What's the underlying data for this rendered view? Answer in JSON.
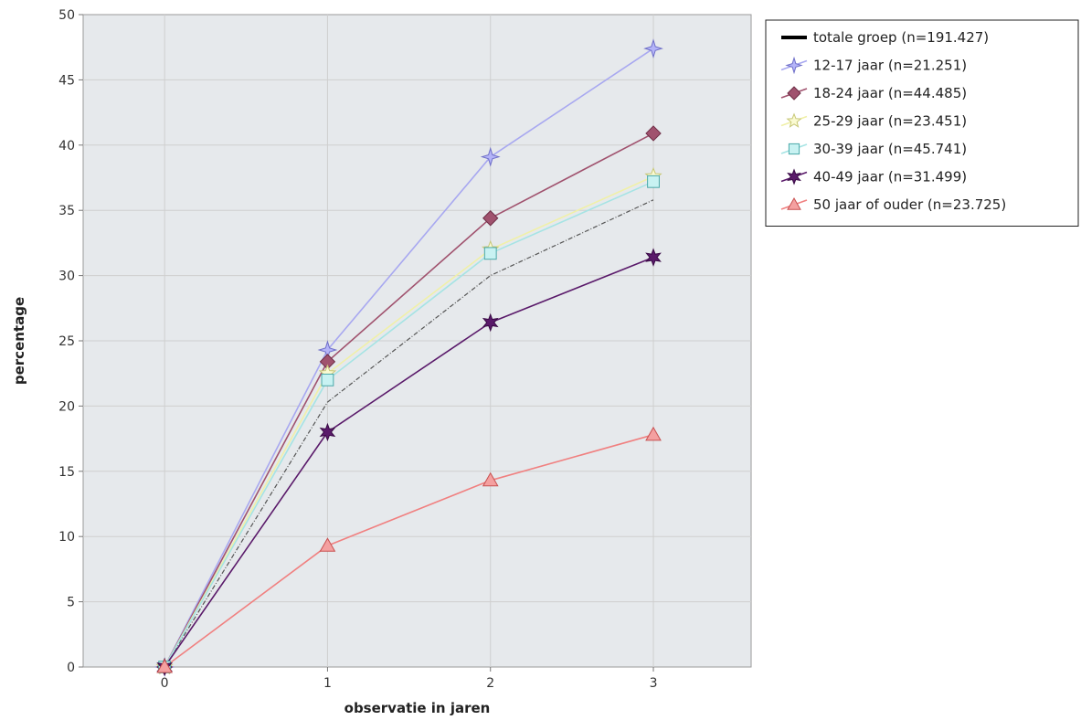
{
  "chart_data": {
    "type": "line",
    "xlabel": "observatie in jaren",
    "ylabel": "percentage",
    "x": [
      0,
      1,
      2,
      3
    ],
    "xlim": [
      -0.5,
      3.6
    ],
    "ylim": [
      0,
      50
    ],
    "x_ticks": [
      "0",
      "1",
      "2",
      "3"
    ],
    "y_ticks": [
      "0",
      "5",
      "10",
      "15",
      "20",
      "25",
      "30",
      "35",
      "40",
      "45",
      "50"
    ],
    "grid": true,
    "legend_position": "right",
    "plot_background": "#e6e9ec",
    "series": [
      {
        "name": "totale groep (n=191.427)",
        "values": [
          0,
          20.3,
          30.0,
          35.8
        ],
        "color": "#555555",
        "legend_color": "#000000",
        "marker": "none",
        "dashed": true
      },
      {
        "name": "12-17 jaar (n=21.251)",
        "values": [
          0,
          24.3,
          39.1,
          47.4
        ],
        "color": "#a8a8f0",
        "marker": "star4",
        "marker_fill": "#b4b4f8",
        "marker_stroke": "#6f6fc8"
      },
      {
        "name": "18-24 jaar (n=44.485)",
        "values": [
          0,
          23.4,
          34.4,
          40.9
        ],
        "color": "#a0526e",
        "marker": "diamond",
        "marker_fill": "#a0526e",
        "marker_stroke": "#6e2e46"
      },
      {
        "name": "25-29 jaar (n=23.451)",
        "values": [
          0,
          22.5,
          32.0,
          37.6
        ],
        "color": "#f0f0a8",
        "marker": "star5",
        "marker_fill": "#fafad2",
        "marker_stroke": "#c8c878"
      },
      {
        "name": "30-39 jaar (n=45.741)",
        "values": [
          0,
          22.0,
          31.7,
          37.2
        ],
        "color": "#a6e4e4",
        "marker": "square",
        "marker_fill": "#c8f2f2",
        "marker_stroke": "#4aa8a8"
      },
      {
        "name": "40-49 jaar (n=31.499)",
        "values": [
          0,
          18.0,
          26.4,
          31.4
        ],
        "color": "#5a1a6a",
        "marker": "star8",
        "marker_fill": "#5a1a6a",
        "marker_stroke": "#3a0a46"
      },
      {
        "name": "50 jaar of ouder (n=23.725)",
        "values": [
          0,
          9.3,
          14.3,
          17.8
        ],
        "color": "#f08080",
        "marker": "triangle",
        "marker_fill": "#f4a0a0",
        "marker_stroke": "#c85050"
      }
    ]
  }
}
